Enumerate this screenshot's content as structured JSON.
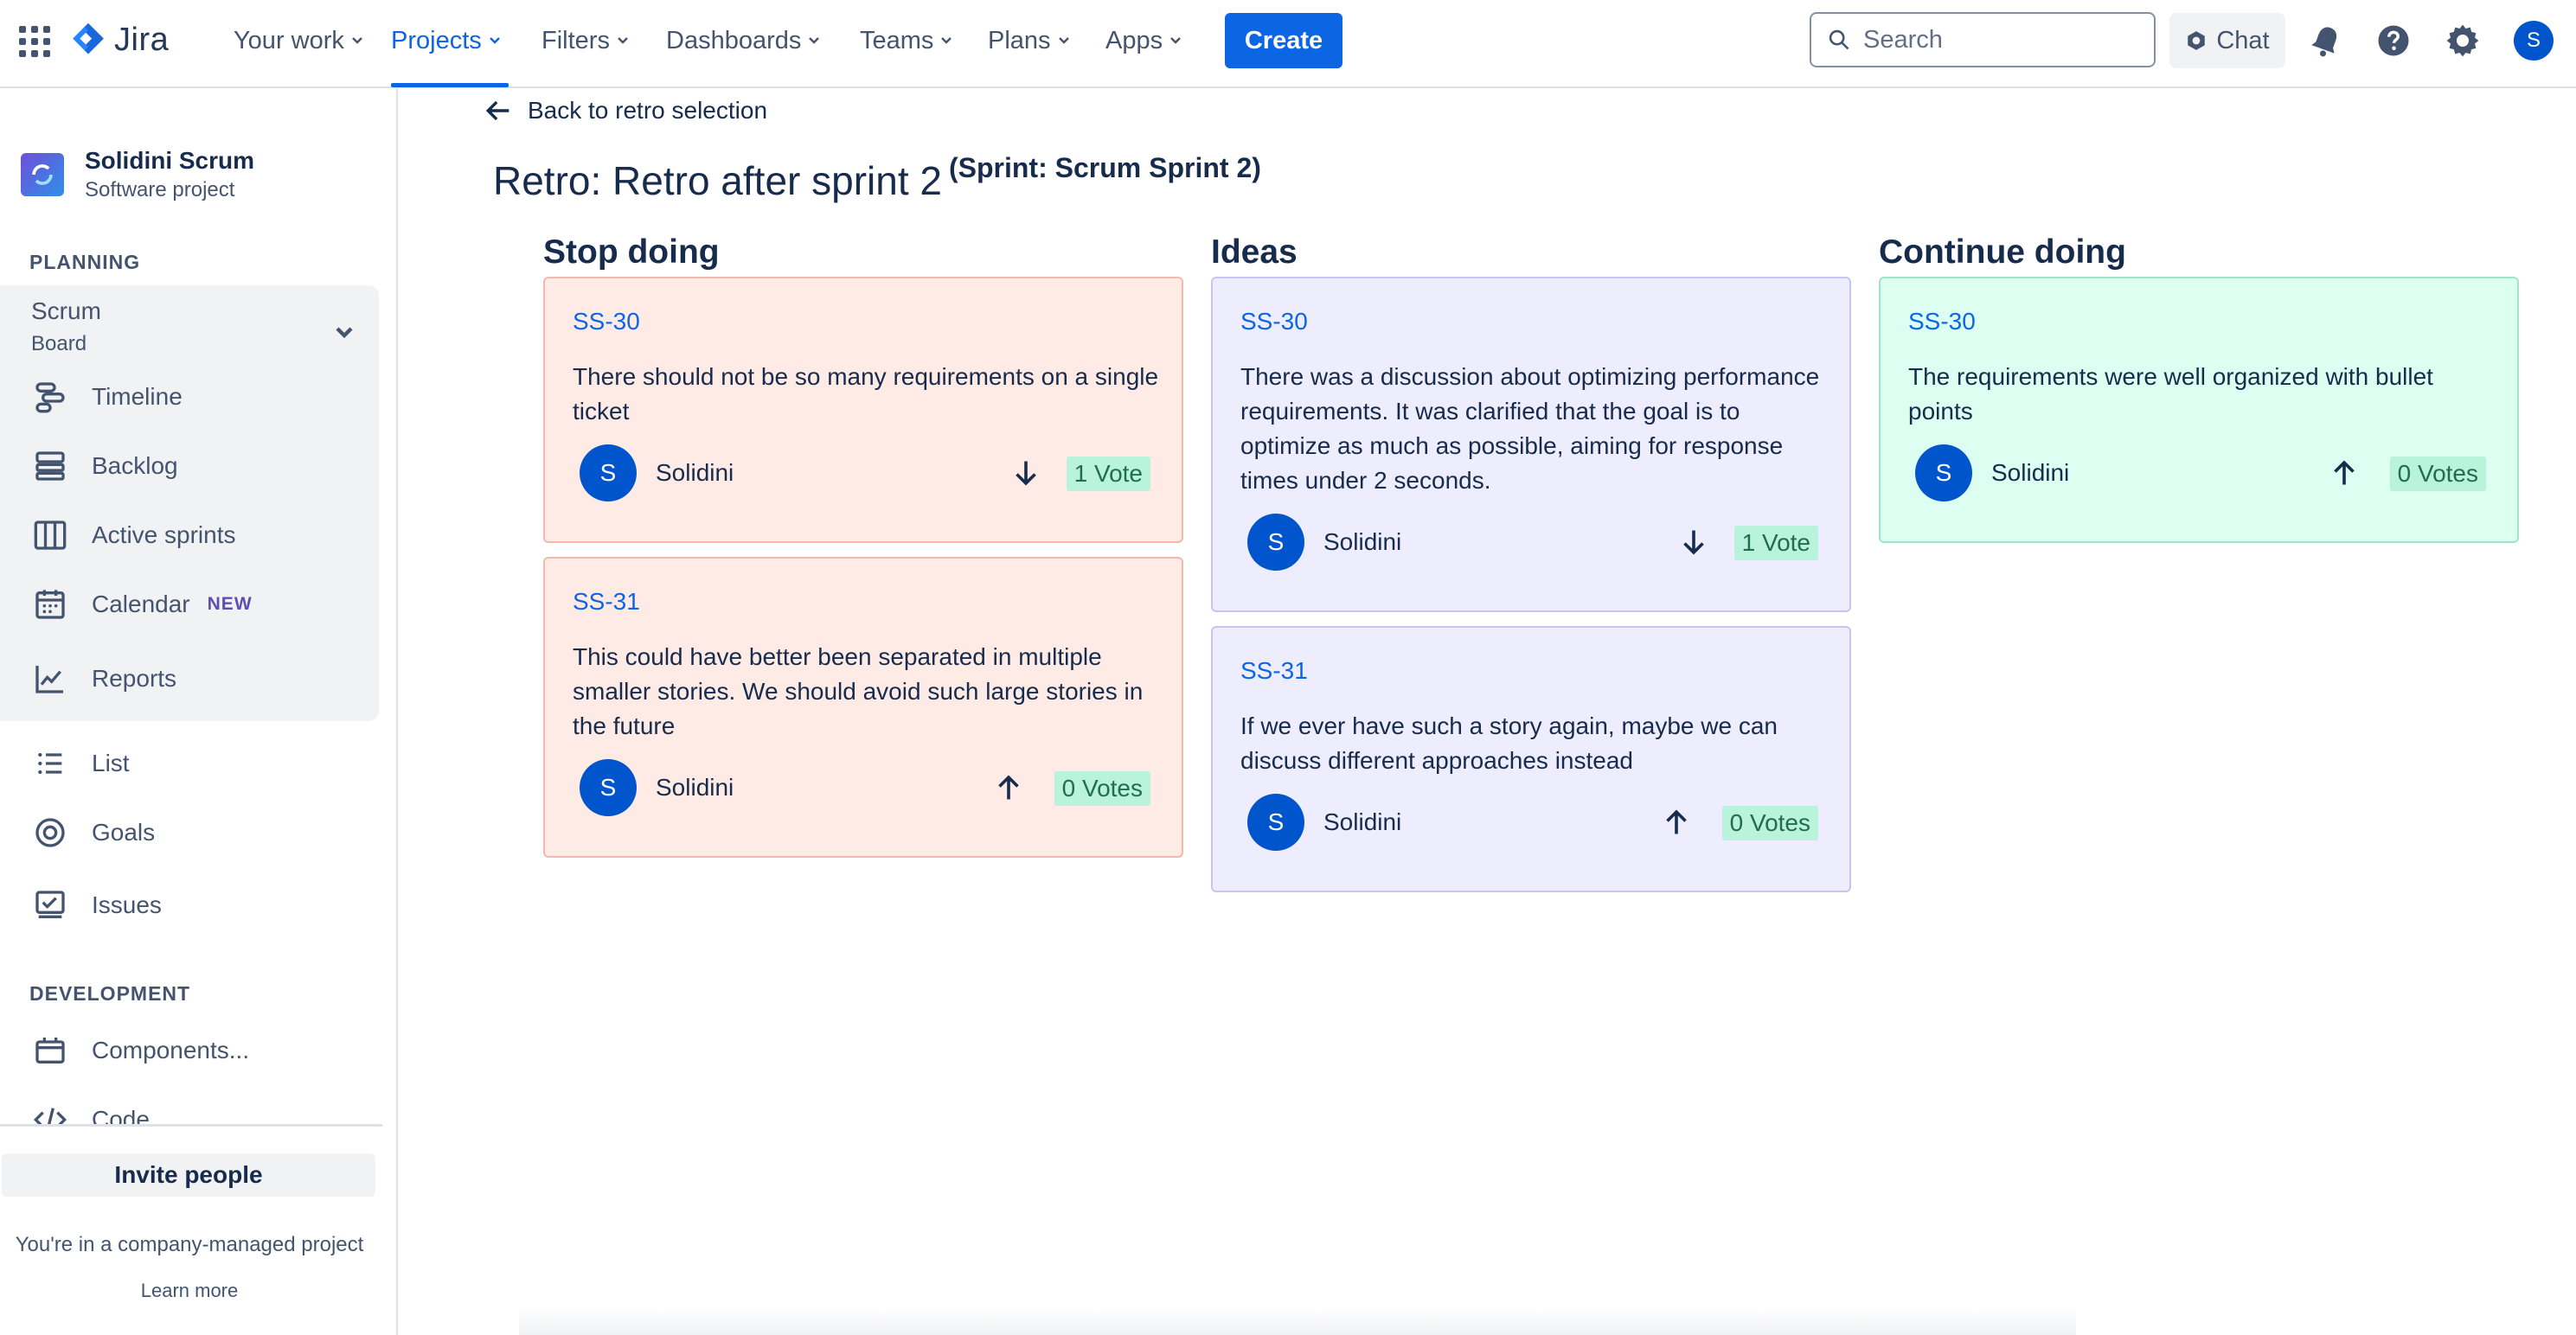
{
  "topnav": {
    "brand": "Jira",
    "items": [
      "Your work",
      "Projects",
      "Filters",
      "Dashboards",
      "Teams",
      "Plans",
      "Apps"
    ],
    "create_label": "Create",
    "search_placeholder": "Search",
    "chat_label": "Chat",
    "avatar_initial": "S",
    "accent_color": "#0c66e4"
  },
  "sidebar": {
    "project_name": "Solidini Scrum",
    "project_type": "Software project",
    "planning_header": "PLANNING",
    "board_name": "Scrum",
    "board_sub": "Board",
    "board_items": [
      "Timeline",
      "Backlog",
      "Active sprints",
      "Calendar",
      "Reports"
    ],
    "calendar_badge": "NEW",
    "other_items": [
      "List",
      "Goals",
      "Issues"
    ],
    "development_header": "DEVELOPMENT",
    "dev_items": [
      "Components...",
      "Code"
    ],
    "invite_label": "Invite people",
    "company_note": "You're in a company-managed project",
    "learn_more": "Learn more"
  },
  "main": {
    "back_label": "Back to retro selection",
    "title": "Retro: Retro after sprint 2",
    "subtitle": "(Sprint: Scrum Sprint 2)",
    "columns": [
      {
        "title": "Stop doing",
        "color": "#ffebe6",
        "cards": [
          {
            "key": "SS-30",
            "text": "There should not be so many requirements on a single ticket",
            "initial": "S",
            "user": "Solidini",
            "vote_direction": "down",
            "votes": "1 Vote"
          },
          {
            "key": "SS-31",
            "text": "This could have better been separated in multiple smaller stories. We should avoid such large stories in the future",
            "initial": "S",
            "user": "Solidini",
            "vote_direction": "up",
            "votes": "0 Votes"
          }
        ]
      },
      {
        "title": "Ideas",
        "color": "#eeedfd",
        "cards": [
          {
            "key": "SS-30",
            "text": "There was a discussion about optimizing performance requirements. It was clarified that the goal is to optimize as much as possible, aiming for response times under 2 seconds.",
            "initial": "S",
            "user": "Solidini",
            "vote_direction": "down",
            "votes": "1 Vote"
          },
          {
            "key": "SS-31",
            "text": "If we ever have such a story again, maybe we can discuss different approaches instead",
            "initial": "S",
            "user": "Solidini",
            "vote_direction": "up",
            "votes": "0 Votes"
          }
        ]
      },
      {
        "title": "Continue doing",
        "color": "#dcfff1",
        "cards": [
          {
            "key": "SS-30",
            "text": "The requirements were well organized with bullet points",
            "initial": "S",
            "user": "Solidini",
            "vote_direction": "up",
            "votes": "0 Votes"
          }
        ]
      }
    ]
  }
}
